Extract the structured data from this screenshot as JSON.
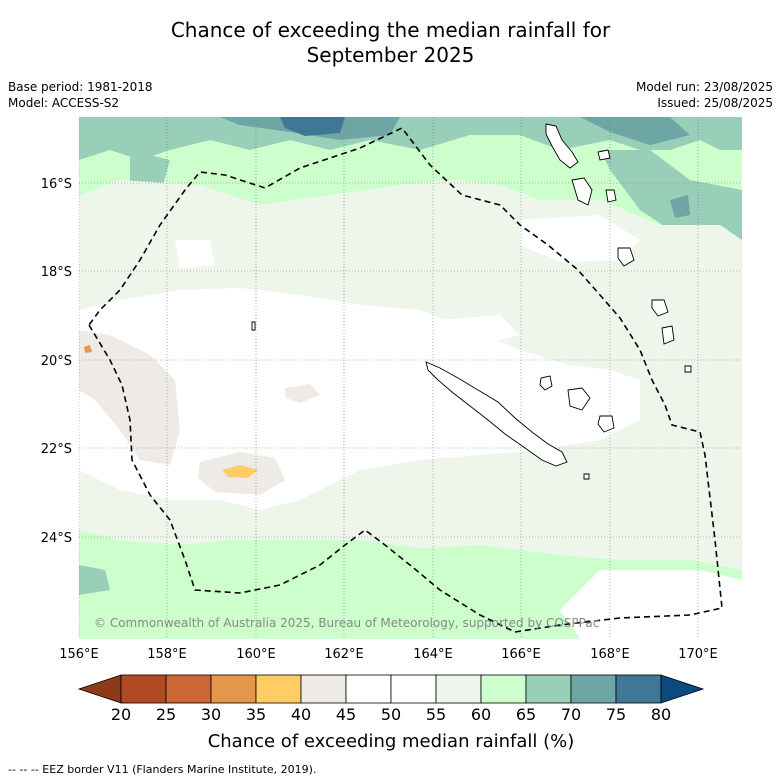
{
  "title_line1": "Chance of exceeding the median rainfall for",
  "title_line2": "September 2025",
  "meta_left": [
    "Base period: 1981-2018",
    "Model: ACCESS-S2"
  ],
  "meta_right": [
    "Model run: 23/08/2025",
    "Issued: 25/08/2025"
  ],
  "copyright": "© Commonwealth of Australia 2025, Bureau of Meteorology, supported by COSPPac",
  "lat_labels": [
    "16°S",
    "18°S",
    "20°S",
    "22°S",
    "24°S"
  ],
  "lon_labels": [
    "156°E",
    "158°E",
    "160°E",
    "162°E",
    "164°E",
    "166°E",
    "168°E",
    "170°E"
  ],
  "colorbar": {
    "label": "Chance of exceeding median rainfall (%)",
    "ticks": [
      "20",
      "25",
      "30",
      "35",
      "40",
      "45",
      "50",
      "55",
      "60",
      "65",
      "70",
      "75",
      "80"
    ],
    "under_color": "#8c3a1a",
    "over_color": "#0a4a80",
    "colors": [
      "#b04a22",
      "#cc6633",
      "#e4964a",
      "#ffcc66",
      "#eeebe6",
      "#ffffff",
      "#ffffff",
      "#eef6ec",
      "#ccffcc",
      "#99cfb8",
      "#6ea6a6",
      "#3f7797"
    ]
  },
  "footnote": "-- -- -- EEZ border V11 (Flanders Marine Institute, 2019)."
}
